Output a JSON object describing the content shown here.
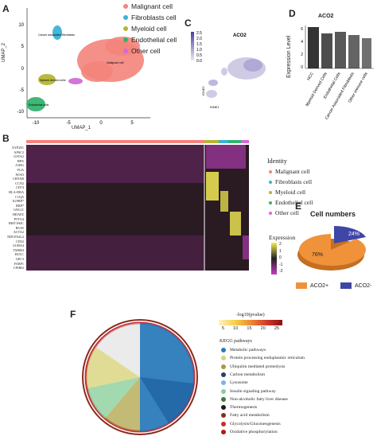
{
  "panels": {
    "A": {
      "letter": "A",
      "axis_y": "UMAP_2",
      "axis_x": "UMAP_1",
      "x_ticks": [
        "-10",
        "-5",
        "0",
        "5"
      ],
      "y_ticks": [
        "10",
        "5",
        "0",
        "-5",
        "-10"
      ],
      "cluster_labels": [
        "Cancer associated fibroblasts",
        "Malignant cell",
        "Myeloid derived cells",
        "Endothelial cells"
      ],
      "legend": [
        {
          "label": "Malignant cell",
          "color": "#f4847c"
        },
        {
          "label": "Fibroblasts cell",
          "color": "#3ab3d6"
        },
        {
          "label": "Myeloid cell",
          "color": "#b5b534"
        },
        {
          "label": "Endothelial cell",
          "color": "#35b36f"
        },
        {
          "label": "Other cell",
          "color": "#d36bd8"
        }
      ]
    },
    "C": {
      "letter": "C",
      "title": "ACO2",
      "colorbar_ticks": [
        "2.5",
        "2.0",
        "1.5",
        "1.0",
        "0.5",
        "0.0"
      ],
      "axis_x": "tSNE1",
      "axis_y": "tSNE2"
    },
    "D": {
      "letter": "D",
      "title": "ACO2",
      "ylabel": "Expression Level",
      "y_ticks": [
        "6",
        "4",
        "2",
        "0"
      ],
      "categories": [
        "HCC",
        "Myeloid Derived Cells",
        "Endothelial Cells",
        "Cancer Associated Fibroblasts",
        "Other immune cells"
      ]
    },
    "B": {
      "letter": "B",
      "genes": [
        "XYP2E1",
        "APSC2",
        "GSTA2",
        "HPX",
        "A1BG",
        "FGA",
        "NOS3",
        "CRYAB",
        "CCN2",
        "CD74",
        "HLA-DRA",
        "C1QA",
        "IGFBP7",
        "RBP7",
        "GNG11",
        "HDAFZ",
        "PTTG4",
        "HIST1H4C",
        "RGS5",
        "ACTA2",
        "NDUFA4L2",
        "CD52",
        "S100A4",
        "TMSB4",
        "HULC",
        "GPC3",
        "FABP1",
        "CFHR2"
      ],
      "identity_title": "Identity",
      "identity": [
        {
          "label": "Malignant cell",
          "color": "#f4847c"
        },
        {
          "label": "Fibroblasts cell",
          "color": "#3ab3d6"
        },
        {
          "label": "Myeloid cell",
          "color": "#b5b534"
        },
        {
          "label": "Endothelial cell",
          "color": "#35b36f"
        },
        {
          "label": "Other cell",
          "color": "#d36bd8"
        }
      ],
      "expression_title": "Expression",
      "expression_ticks": [
        "2",
        "1",
        "0",
        "-1",
        "-2"
      ]
    },
    "E": {
      "letter": "E",
      "title": "Cell numbers",
      "slices": [
        {
          "label": "ACO2+",
          "value": 76,
          "text": "76%",
          "color": "#f0923a"
        },
        {
          "label": "ACO2-",
          "value": 24,
          "text": "24%",
          "color": "#3e46a6"
        }
      ]
    },
    "F": {
      "letter": "F",
      "scale_title": "-log10(pvalue)",
      "scale_ticks": [
        "5",
        "10",
        "15",
        "20",
        "25"
      ],
      "kegg_title": "KEGG pathways",
      "pathways": [
        {
          "label": "Metabolic pathways",
          "color": "#2b7bba"
        },
        {
          "label": "Protein processing endoplasmic reticulum",
          "color": "#d8d37b"
        },
        {
          "label": "Ubiquitin mediated proteolysis",
          "color": "#aa9c3c"
        },
        {
          "label": "Carbon metabolism",
          "color": "#25406b"
        },
        {
          "label": "Lysosome",
          "color": "#7bb6e0"
        },
        {
          "label": "Insulin signaling pathway",
          "color": "#8bcf9a"
        },
        {
          "label": "Non-alcoholic fatty liver disease",
          "color": "#47763a"
        },
        {
          "label": "Thermogenesis",
          "color": "#1e1e1e"
        },
        {
          "label": "Fatty acid metabolism",
          "color": "#8b2a1e"
        },
        {
          "label": "Glycolysis/Gluconeogenesis",
          "color": "#d22a2a"
        },
        {
          "label": "Oxidative phosphorylation",
          "color": "#a61c1c"
        }
      ]
    }
  }
}
